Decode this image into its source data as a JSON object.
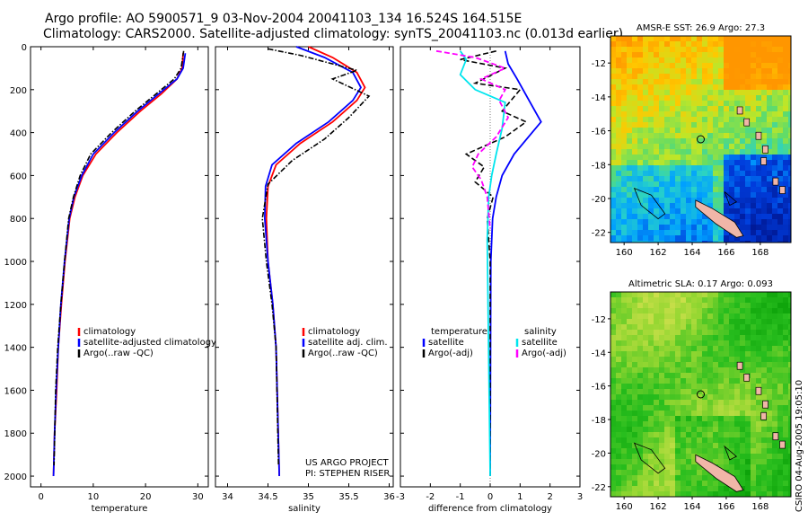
{
  "header": {
    "line1": "Argo profile: AO 5900571_9 03-Nov-2004 20041103_134 16.524S 164.515E",
    "line2": "Climatology: CARS2000. Satellite-adjusted climatology: synTS_20041103.nc (0.013d earlier)"
  },
  "side_stamp": "CSIRO 04-Aug-2005 19:05:10",
  "project": {
    "line1": "US ARGO PROJECT",
    "line2": "PI: STEPHEN RISER"
  },
  "colors": {
    "red": "#ff0000",
    "blue": "#0000ff",
    "black": "#000000",
    "cyan": "#00e5ee",
    "magenta": "#ff00ff"
  },
  "chart_data": [
    {
      "type": "line",
      "id": "temperature",
      "xlabel": "temperature",
      "xlim": [
        -2,
        32
      ],
      "ylim": [
        0,
        2050
      ],
      "xticks": [
        0,
        10,
        20,
        30
      ],
      "yticks": [
        0,
        200,
        400,
        600,
        800,
        1000,
        1200,
        1400,
        1600,
        1800,
        2000
      ],
      "legend": [
        "climatology",
        "satellite-adjusted climatology",
        "Argo(..raw -QC)"
      ],
      "series": [
        {
          "name": "climatology",
          "color": "red",
          "style": "solid",
          "x": [
            27.2,
            27.0,
            26.0,
            23.0,
            19.0,
            14.5,
            10.5,
            8.0,
            6.5,
            5.5,
            4.6,
            3.9,
            3.3,
            3.0,
            2.6,
            2.4
          ],
          "y": [
            30,
            100,
            150,
            220,
            300,
            400,
            500,
            600,
            700,
            800,
            1000,
            1200,
            1400,
            1600,
            1800,
            2000
          ]
        },
        {
          "name": "satellite-adjusted climatology",
          "color": "blue",
          "style": "solid",
          "x": [
            27.6,
            27.2,
            26.0,
            22.5,
            18.5,
            14.0,
            10.0,
            7.8,
            6.3,
            5.4,
            4.5,
            3.8,
            3.3,
            2.9,
            2.6,
            2.4
          ],
          "y": [
            30,
            100,
            150,
            220,
            300,
            400,
            500,
            600,
            700,
            800,
            1000,
            1200,
            1400,
            1600,
            1800,
            2000
          ]
        },
        {
          "name": "Argo(..raw -QC)",
          "color": "black",
          "style": "dashdot",
          "x": [
            27.3,
            26.8,
            25.5,
            22.0,
            18.0,
            13.5,
            9.5,
            7.5,
            6.2,
            5.3,
            4.5,
            3.8,
            3.2,
            2.8,
            2.5
          ],
          "y": [
            20,
            100,
            150,
            220,
            300,
            400,
            500,
            600,
            700,
            800,
            1000,
            1200,
            1400,
            1600,
            1950
          ]
        }
      ]
    },
    {
      "type": "line",
      "id": "salinity",
      "xlabel": "salinity",
      "xlim": [
        33.85,
        36.05
      ],
      "ylim": [
        0,
        2050
      ],
      "xticks": [
        34,
        34.5,
        35,
        35.5,
        36
      ],
      "yticks": [
        0,
        200,
        400,
        600,
        800,
        1000,
        1200,
        1400,
        1600,
        1800,
        2000
      ],
      "legend": [
        "climatology",
        "satellite adj. clim.",
        "Argo(..raw -QC)"
      ],
      "series": [
        {
          "name": "climatology",
          "color": "red",
          "style": "solid",
          "x": [
            35.0,
            35.3,
            35.6,
            35.7,
            35.6,
            35.3,
            34.9,
            34.6,
            34.5,
            34.48,
            34.5,
            34.56,
            34.6,
            34.62,
            34.64
          ],
          "y": [
            0,
            50,
            120,
            190,
            250,
            350,
            450,
            550,
            650,
            800,
            1000,
            1200,
            1400,
            1700,
            2000
          ]
        },
        {
          "name": "satellite adj. clim.",
          "color": "blue",
          "style": "solid",
          "x": [
            34.85,
            35.2,
            35.55,
            35.65,
            35.55,
            35.25,
            34.85,
            34.55,
            34.47,
            34.46,
            34.5,
            34.56,
            34.6,
            34.62,
            34.64
          ],
          "y": [
            0,
            50,
            120,
            190,
            250,
            350,
            450,
            550,
            650,
            800,
            1000,
            1200,
            1400,
            1700,
            2000
          ]
        },
        {
          "name": "Argo(..raw -QC)",
          "color": "black",
          "style": "dashdot",
          "x": [
            34.5,
            34.9,
            35.6,
            35.3,
            35.75,
            35.5,
            35.2,
            34.8,
            34.5,
            34.43,
            34.48,
            34.55,
            34.6,
            34.63
          ],
          "y": [
            10,
            40,
            110,
            150,
            230,
            330,
            430,
            530,
            640,
            800,
            1000,
            1200,
            1400,
            1950
          ]
        }
      ]
    },
    {
      "type": "line",
      "id": "difference",
      "xlabel": "difference from climatology",
      "xlim": [
        -3,
        3
      ],
      "ylim": [
        0,
        2050
      ],
      "xticks": [
        -3,
        -2,
        -1,
        0,
        1,
        2,
        3
      ],
      "yticks": [
        0,
        200,
        400,
        600,
        800,
        1000,
        1200,
        1400,
        1600,
        1800,
        2000
      ],
      "legend": [
        {
          "label": "temperature",
          "color": "none"
        },
        {
          "label": "satellite",
          "color": "blue"
        },
        {
          "label": "Argo(-adj)",
          "color": "black"
        },
        {
          "label": "salinity",
          "color": "none"
        },
        {
          "label": "satellite",
          "color": "cyan"
        },
        {
          "label": "Argo(-adj)",
          "color": "magenta"
        }
      ],
      "series": [
        {
          "name": "temperature satellite",
          "color": "blue",
          "style": "solid",
          "x": [
            0.5,
            0.6,
            0.9,
            1.3,
            1.7,
            1.4,
            0.8,
            0.4,
            0.2,
            0.08,
            0.02,
            0.0
          ],
          "y": [
            20,
            80,
            150,
            250,
            350,
            400,
            500,
            600,
            700,
            800,
            1000,
            2000
          ]
        },
        {
          "name": "temperature Argo(-adj)",
          "color": "black",
          "style": "dashed",
          "x": [
            0.2,
            -1.0,
            0.5,
            -0.5,
            1.0,
            0.4,
            1.2,
            0.5,
            -0.8,
            -0.2,
            -0.5,
            0.1,
            -0.1,
            0.0,
            0.0
          ],
          "y": [
            20,
            60,
            100,
            170,
            200,
            300,
            350,
            420,
            500,
            560,
            630,
            700,
            800,
            1000,
            2000
          ]
        },
        {
          "name": "salinity satellite",
          "color": "cyan",
          "style": "solid",
          "x": [
            -1.0,
            -0.8,
            -1.0,
            -0.5,
            0.5,
            0.4,
            0.2,
            0.05,
            -0.05,
            -0.1,
            0.0
          ],
          "y": [
            20,
            60,
            130,
            200,
            260,
            380,
            500,
            600,
            700,
            900,
            2000
          ]
        },
        {
          "name": "salinity Argo(-adj)",
          "color": "magenta",
          "style": "dashed",
          "x": [
            -1.8,
            -0.5,
            0.5,
            -0.3,
            0.5,
            0.3,
            0.6,
            0.2,
            -0.4,
            -0.6,
            -0.3,
            -0.1,
            0.0
          ],
          "y": [
            20,
            50,
            100,
            150,
            200,
            250,
            330,
            420,
            500,
            560,
            620,
            700,
            850
          ]
        }
      ]
    },
    {
      "type": "heatmap",
      "id": "sst_map",
      "title": "AMSR-E SST: 26.9 Argo: 27.3",
      "xticks": [
        160,
        162,
        164,
        166,
        168
      ],
      "yticks": [
        -12,
        -14,
        -16,
        -18,
        -20,
        -22
      ],
      "xlim": [
        159.2,
        169.8
      ],
      "ylim": [
        -22.6,
        -10.4
      ],
      "marker": {
        "lon": 164.5,
        "lat": -16.5
      }
    },
    {
      "type": "heatmap",
      "id": "sla_map",
      "title": "Altimetric SLA: 0.17 Argo: 0.093",
      "xticks": [
        160,
        162,
        164,
        166,
        168
      ],
      "yticks": [
        -12,
        -14,
        -16,
        -18,
        -20,
        -22
      ],
      "xlim": [
        159.2,
        169.8
      ],
      "ylim": [
        -22.6,
        -10.4
      ],
      "marker": {
        "lon": 164.5,
        "lat": -16.5
      }
    }
  ]
}
